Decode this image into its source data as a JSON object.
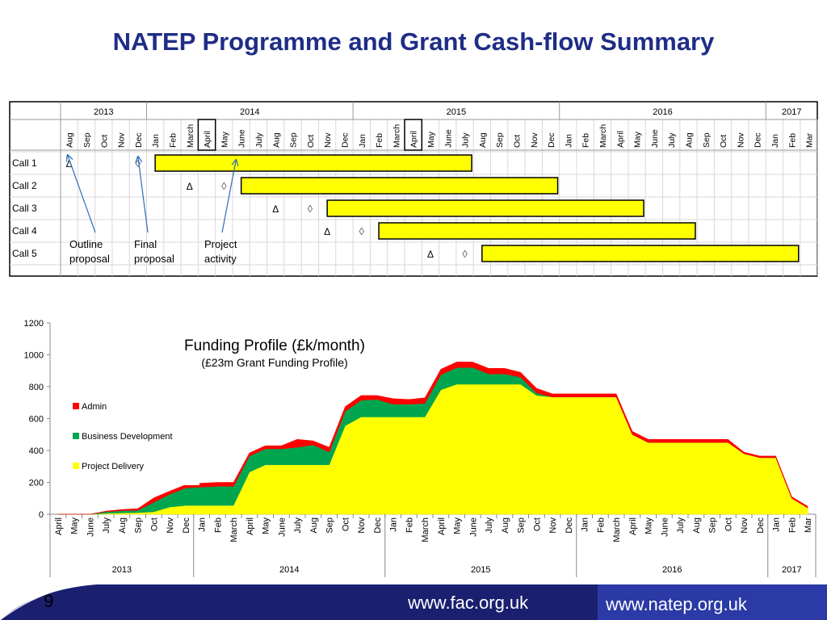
{
  "title": "NATEP Programme  and Grant Cash-flow Summary",
  "gantt": {
    "years": [
      {
        "label": "2013",
        "start": 0,
        "count": 5
      },
      {
        "label": "2014",
        "start": 5,
        "count": 12
      },
      {
        "label": "2015",
        "start": 17,
        "count": 12
      },
      {
        "label": "2016",
        "start": 29,
        "count": 12
      },
      {
        "label": "2017",
        "start": 41,
        "count": 3
      }
    ],
    "months": [
      "Aug",
      "Sep",
      "Oct",
      "Nov",
      "Dec",
      "Jan",
      "Feb",
      "March",
      "April",
      "May",
      "June",
      "July",
      "Aug",
      "Sep",
      "Oct",
      "Nov",
      "Dec",
      "Jan",
      "Feb",
      "March",
      "April",
      "May",
      "June",
      "July",
      "Aug",
      "Sep",
      "Oct",
      "Nov",
      "Dec",
      "Jan",
      "Feb",
      "March",
      "April",
      "May",
      "June",
      "July",
      "Aug",
      "Sep",
      "Oct",
      "Nov",
      "Dec",
      "Jan",
      "Feb",
      "Mar"
    ],
    "highlighted_months": [
      8,
      20
    ],
    "calls": [
      {
        "label": "Call 1",
        "outline_col": 0,
        "final_col": 4,
        "bar_start": 5.5,
        "bar_end": 23.9
      },
      {
        "label": "Call 2",
        "outline_col": 7,
        "final_col": 9,
        "bar_start": 10.5,
        "bar_end": 28.9
      },
      {
        "label": "Call 3",
        "outline_col": 12,
        "final_col": 14,
        "bar_start": 15.5,
        "bar_end": 33.9
      },
      {
        "label": "Call 4",
        "outline_col": 15,
        "final_col": 17,
        "bar_start": 18.5,
        "bar_end": 36.9
      },
      {
        "label": "Call 5",
        "outline_col": 21,
        "final_col": 23,
        "bar_start": 24.5,
        "bar_end": 42.9
      }
    ],
    "outline_symbol": "Δ",
    "final_symbol": "◊",
    "annotations": [
      {
        "text": "Outline proposal",
        "line1": "Outline",
        "line2": "proposal"
      },
      {
        "text": "Final proposal",
        "line1": "Final",
        "line2": "proposal"
      },
      {
        "text": "Project activity",
        "line1": "Project",
        "line2": "activity"
      }
    ],
    "bar_color": "#ffff00"
  },
  "chart_data": {
    "type": "area",
    "stacked": true,
    "title": "Funding Profile (£k/month)",
    "subtitle": "(£23m Grant Funding Profile)",
    "categories": [
      "April",
      "May",
      "June",
      "July",
      "Aug",
      "Sep",
      "Oct",
      "Nov",
      "Dec",
      "Jan",
      "Feb",
      "March",
      "April",
      "May",
      "June",
      "July",
      "Aug",
      "Sep",
      "Oct",
      "Nov",
      "Dec",
      "Jan",
      "Feb",
      "March",
      "April",
      "May",
      "June",
      "July",
      "Aug",
      "Sep",
      "Oct",
      "Nov",
      "Dec",
      "Jan",
      "Feb",
      "March",
      "April",
      "May",
      "June",
      "July",
      "Aug",
      "Sep",
      "Oct",
      "Nov",
      "Dec",
      "Jan",
      "Feb",
      "Mar"
    ],
    "year_groups": [
      {
        "label": "2013",
        "start": 0,
        "end": 9
      },
      {
        "label": "2014",
        "start": 9,
        "end": 21
      },
      {
        "label": "2015",
        "start": 21,
        "end": 33
      },
      {
        "label": "2016",
        "start": 33,
        "end": 45
      },
      {
        "label": "2017",
        "start": 45,
        "end": 48
      }
    ],
    "series": [
      {
        "name": "Project Delivery",
        "color": "#ffff00",
        "values": [
          0,
          0,
          0,
          5,
          8,
          10,
          15,
          45,
          55,
          55,
          55,
          55,
          265,
          310,
          310,
          310,
          310,
          310,
          555,
          610,
          610,
          610,
          610,
          610,
          780,
          815,
          815,
          815,
          815,
          815,
          745,
          735,
          735,
          735,
          735,
          735,
          500,
          450,
          450,
          450,
          450,
          450,
          450,
          380,
          355,
          355,
          100,
          40
        ]
      },
      {
        "name": "Business Development",
        "color": "#00a550",
        "values": [
          0,
          0,
          0,
          10,
          15,
          15,
          60,
          80,
          110,
          115,
          120,
          120,
          100,
          100,
          100,
          110,
          125,
          80,
          90,
          105,
          110,
          80,
          80,
          85,
          95,
          105,
          105,
          65,
          65,
          45,
          15,
          0,
          0,
          0,
          0,
          0,
          0,
          0,
          0,
          0,
          0,
          0,
          0,
          0,
          0,
          0,
          0,
          0
        ]
      },
      {
        "name": "Admin",
        "color": "#ff0000",
        "values": [
          0,
          0,
          0,
          5,
          7,
          10,
          28,
          20,
          20,
          25,
          25,
          25,
          20,
          20,
          20,
          50,
          25,
          30,
          30,
          30,
          25,
          35,
          30,
          35,
          35,
          35,
          35,
          35,
          35,
          30,
          30,
          20,
          20,
          20,
          20,
          20,
          20,
          20,
          20,
          20,
          20,
          20,
          20,
          10,
          10,
          10,
          10,
          10
        ]
      }
    ],
    "ylim": [
      0,
      1200
    ],
    "yticks": [
      0,
      200,
      400,
      600,
      800,
      1000,
      1200
    ],
    "grid": false,
    "legend_position": "left"
  },
  "footer": {
    "slide_number": "9",
    "url1": "www.fac.org.uk",
    "url2": "www.natep.org.uk",
    "colors": {
      "navy": "#1a1f70",
      "blue": "#2b3aa6"
    }
  }
}
